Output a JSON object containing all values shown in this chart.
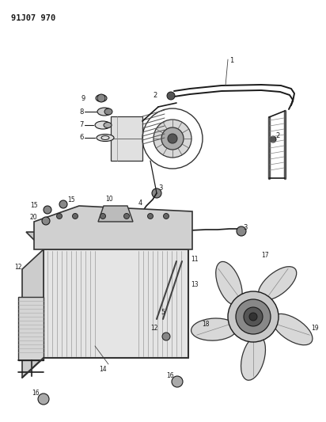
{
  "title": "91J07 970",
  "bg_color": "#ffffff",
  "line_color": "#1a1a1a",
  "figsize": [
    4.12,
    5.33
  ],
  "dpi": 100,
  "text_color": "#1a1a1a"
}
